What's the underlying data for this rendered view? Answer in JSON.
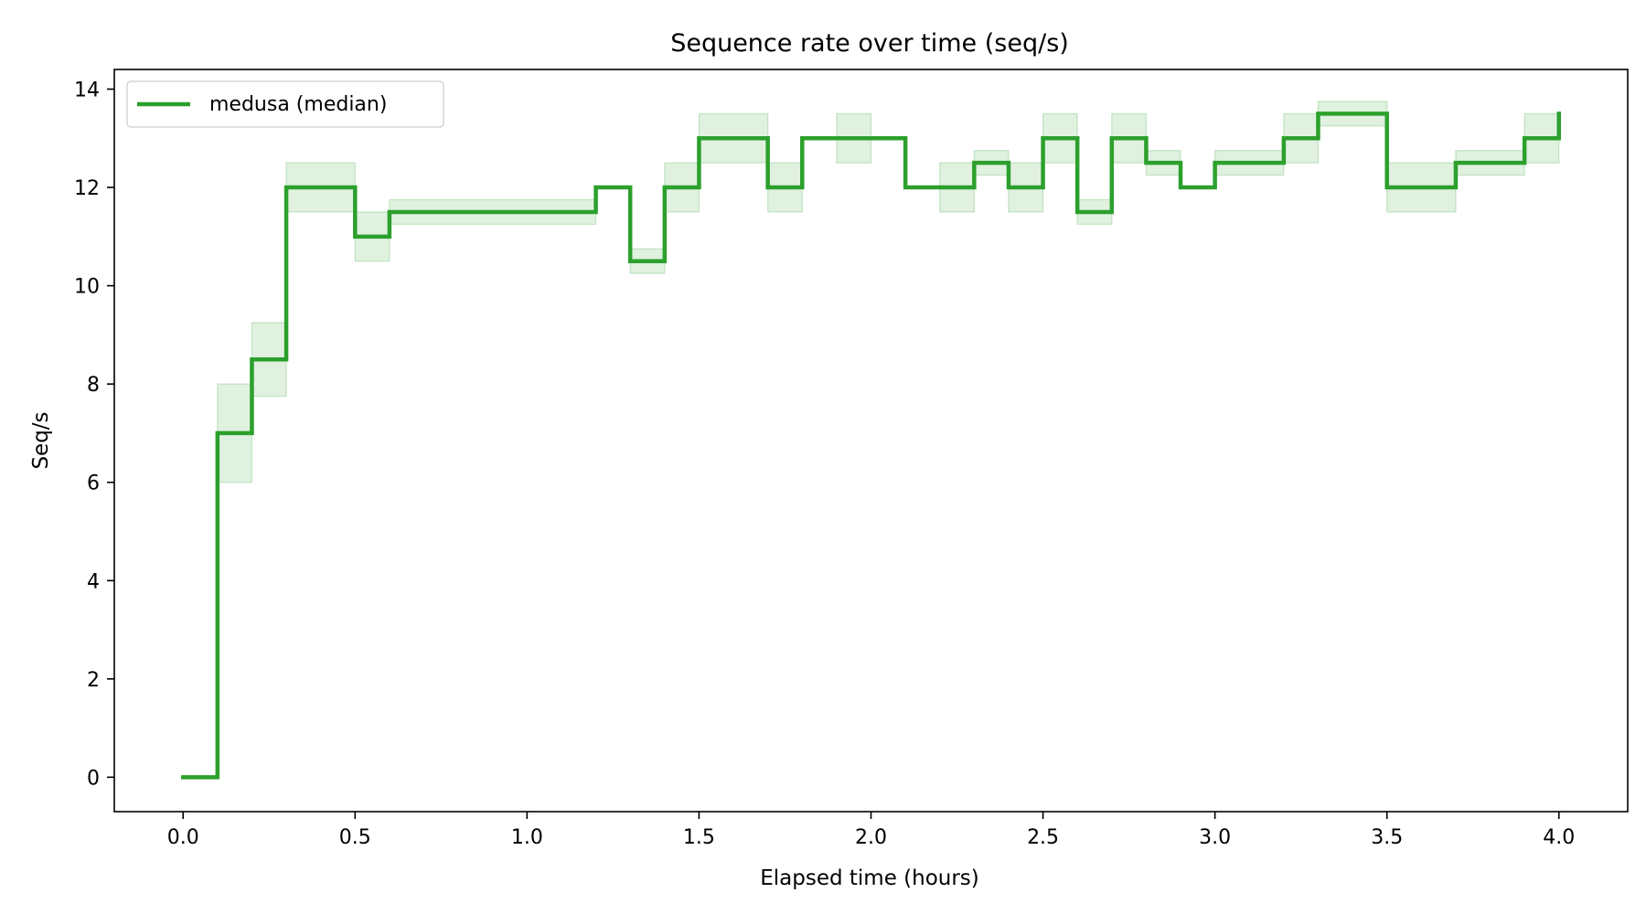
{
  "chart_data": {
    "type": "line",
    "title": "Sequence rate over time (seq/s)",
    "xlabel": "Elapsed time (hours)",
    "ylabel": "Seq/s",
    "xlim": [
      -0.2,
      4.2
    ],
    "ylim": [
      -0.7,
      14.4
    ],
    "xticks": [
      0.0,
      0.5,
      1.0,
      1.5,
      2.0,
      2.5,
      3.0,
      3.5,
      4.0
    ],
    "xtick_labels": [
      "0.0",
      "0.5",
      "1.0",
      "1.5",
      "2.0",
      "2.5",
      "3.0",
      "3.5",
      "4.0"
    ],
    "yticks": [
      0,
      2,
      4,
      6,
      8,
      10,
      12,
      14
    ],
    "ytick_labels": [
      "0",
      "2",
      "4",
      "6",
      "8",
      "10",
      "12",
      "14"
    ],
    "grid": false,
    "legend_position": "top-left",
    "series": [
      {
        "name": "medusa (median)",
        "color": "#2ca02c",
        "band_color": "#2ca02c",
        "step": "post",
        "x": [
          0.0,
          0.1,
          0.2,
          0.3,
          0.5,
          0.6,
          1.2,
          1.3,
          1.4,
          1.5,
          1.7,
          1.8,
          2.1,
          2.3,
          2.4,
          2.5,
          2.6,
          2.7,
          2.8,
          2.9,
          3.0,
          3.2,
          3.3,
          3.5,
          3.7,
          3.9,
          4.0
        ],
        "y": [
          0,
          7,
          8.5,
          12,
          11,
          11.5,
          12,
          10.5,
          12,
          13,
          12,
          13,
          12,
          12.5,
          12,
          13,
          11.5,
          13,
          12.5,
          12,
          12.5,
          13,
          13.5,
          12,
          12.5,
          13,
          13.5
        ],
        "band_segments": [
          {
            "x0": 0.1,
            "x1": 0.2,
            "low": 6.0,
            "high": 8.0
          },
          {
            "x0": 0.2,
            "x1": 0.3,
            "low": 7.75,
            "high": 9.25
          },
          {
            "x0": 0.3,
            "x1": 0.5,
            "low": 11.5,
            "high": 12.5
          },
          {
            "x0": 0.5,
            "x1": 0.6,
            "low": 10.5,
            "high": 11.5
          },
          {
            "x0": 0.6,
            "x1": 1.2,
            "low": 11.25,
            "high": 11.75
          },
          {
            "x0": 1.3,
            "x1": 1.4,
            "low": 10.25,
            "high": 10.75
          },
          {
            "x0": 1.4,
            "x1": 1.5,
            "low": 11.5,
            "high": 12.5
          },
          {
            "x0": 1.5,
            "x1": 1.7,
            "low": 12.5,
            "high": 13.5
          },
          {
            "x0": 1.7,
            "x1": 1.8,
            "low": 11.5,
            "high": 12.5
          },
          {
            "x0": 1.9,
            "x1": 2.0,
            "low": 12.5,
            "high": 13.5
          },
          {
            "x0": 2.2,
            "x1": 2.3,
            "low": 11.5,
            "high": 12.5
          },
          {
            "x0": 2.3,
            "x1": 2.4,
            "low": 12.25,
            "high": 12.75
          },
          {
            "x0": 2.4,
            "x1": 2.5,
            "low": 11.5,
            "high": 12.5
          },
          {
            "x0": 2.5,
            "x1": 2.6,
            "low": 12.5,
            "high": 13.5
          },
          {
            "x0": 2.6,
            "x1": 2.7,
            "low": 11.25,
            "high": 11.75
          },
          {
            "x0": 2.7,
            "x1": 2.8,
            "low": 12.5,
            "high": 13.5
          },
          {
            "x0": 2.8,
            "x1": 2.9,
            "low": 12.25,
            "high": 12.75
          },
          {
            "x0": 3.0,
            "x1": 3.2,
            "low": 12.25,
            "high": 12.75
          },
          {
            "x0": 3.2,
            "x1": 3.3,
            "low": 12.5,
            "high": 13.5
          },
          {
            "x0": 3.3,
            "x1": 3.5,
            "low": 13.25,
            "high": 13.75
          },
          {
            "x0": 3.5,
            "x1": 3.7,
            "low": 11.5,
            "high": 12.5
          },
          {
            "x0": 3.7,
            "x1": 3.9,
            "low": 12.25,
            "high": 12.75
          },
          {
            "x0": 3.9,
            "x1": 4.0,
            "low": 12.5,
            "high": 13.5
          }
        ]
      }
    ]
  }
}
